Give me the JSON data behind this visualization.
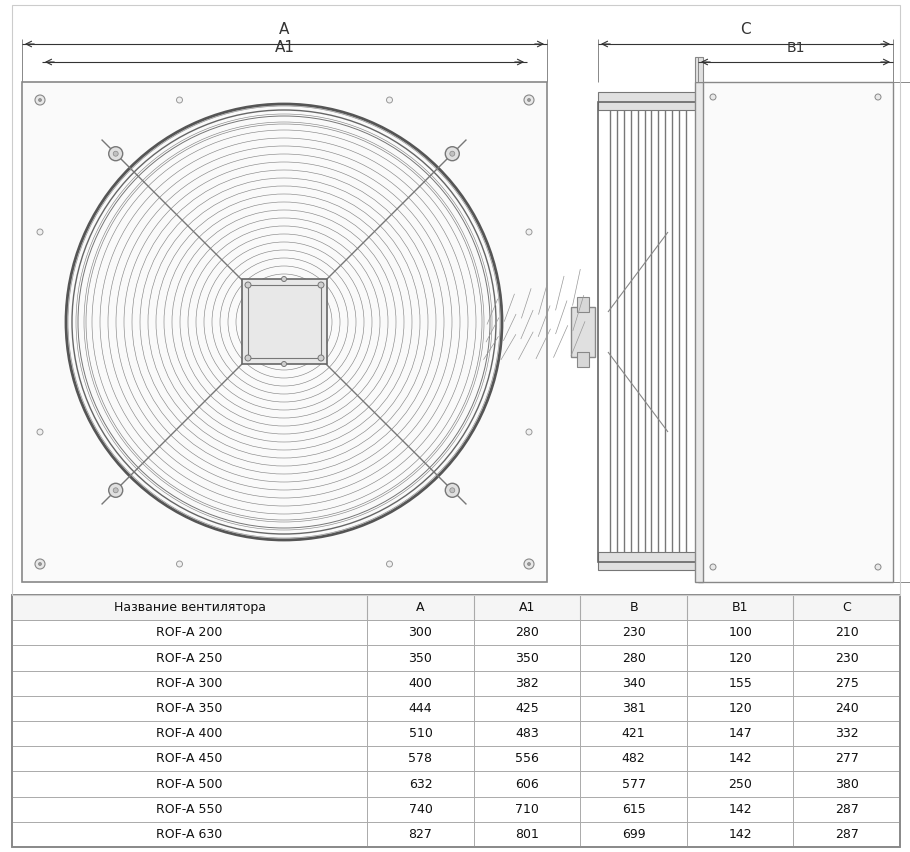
{
  "table_headers": [
    "Название вентилятора",
    "A",
    "A1",
    "B",
    "B1",
    "C"
  ],
  "table_rows": [
    [
      "ROF-A 200",
      "300",
      "280",
      "230",
      "100",
      "210"
    ],
    [
      "ROF-A 250",
      "350",
      "350",
      "280",
      "120",
      "230"
    ],
    [
      "ROF-A 300",
      "400",
      "382",
      "340",
      "155",
      "275"
    ],
    [
      "ROF-A 350",
      "444",
      "425",
      "381",
      "120",
      "240"
    ],
    [
      "ROF-A 400",
      "510",
      "483",
      "421",
      "147",
      "332"
    ],
    [
      "ROF-A 450",
      "578",
      "556",
      "482",
      "142",
      "277"
    ],
    [
      "ROF-A 500",
      "632",
      "606",
      "577",
      "250",
      "380"
    ],
    [
      "ROF-A 550",
      "740",
      "710",
      "615",
      "142",
      "287"
    ],
    [
      "ROF-A 630",
      "827",
      "801",
      "699",
      "142",
      "287"
    ]
  ],
  "bg_color": "#ffffff",
  "line_color": "#555555",
  "dim_color": "#333333",
  "light_line": "#aaaaaa",
  "table_line": "#aaaaaa",
  "text_color": "#111111",
  "fan_lc": "#666666",
  "plate_fc": "#f8f8f8"
}
